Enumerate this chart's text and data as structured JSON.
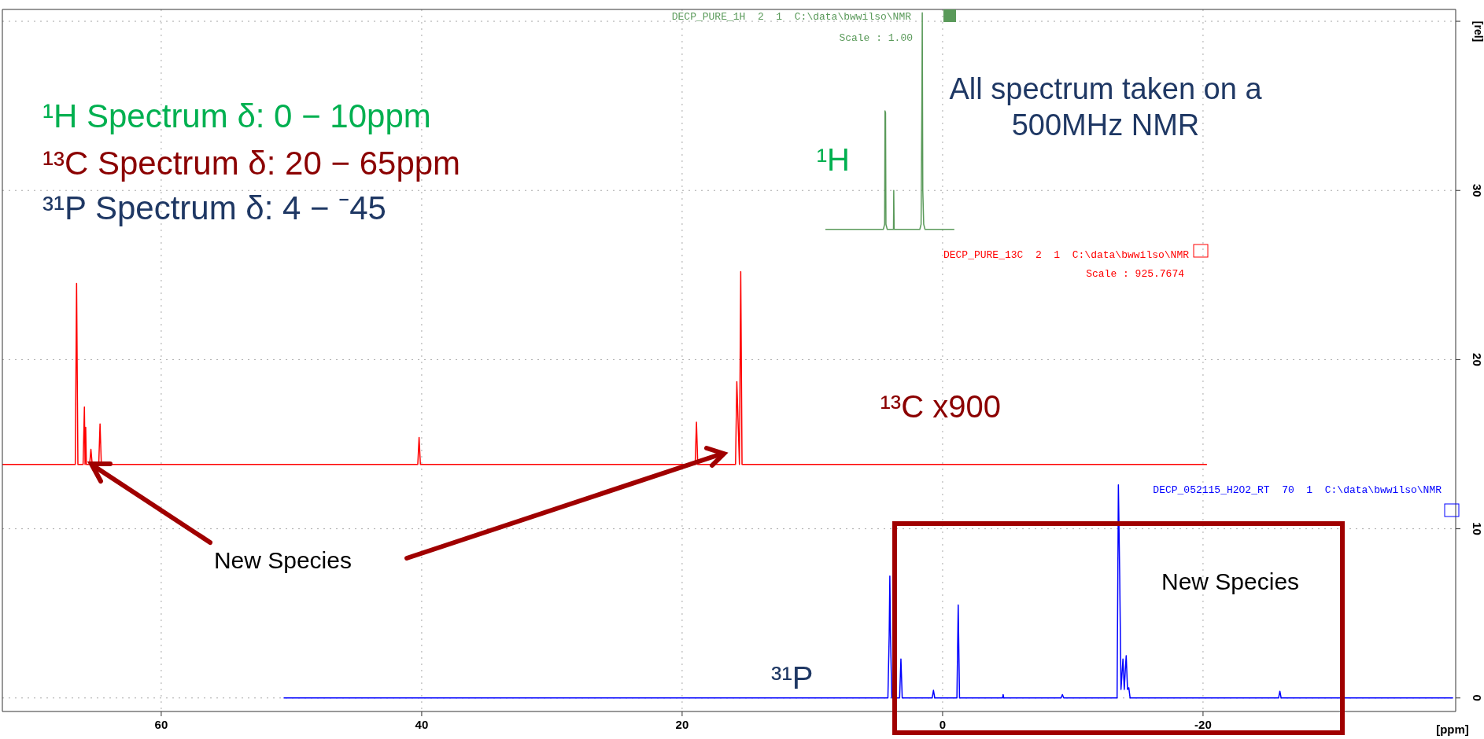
{
  "chart_data": {
    "type": "line",
    "xlabel": "[ppm]",
    "ylabel": "[rel]",
    "xlim": [
      72.2,
      -39.4
    ],
    "xticks": [
      60,
      40,
      20,
      0,
      -20
    ],
    "ylim": [
      -0.8,
      40.7
    ],
    "yticks": [
      0,
      10,
      20,
      30,
      {
        "value": 40,
        "label": null
      }
    ],
    "grid": true,
    "marker": "none",
    "line_style": "solid",
    "series": [
      {
        "name": "¹H",
        "color": "#5a9a5a",
        "x": [
          9.0,
          4.55,
          4.45,
          4.42,
          4.38,
          4.35,
          4.25,
          3.77,
          3.75,
          3.72,
          1.75,
          1.65,
          1.58,
          1.56,
          1.52,
          1.45,
          1.35,
          -0.9
        ],
        "values": [
          27.7,
          27.7,
          28.0,
          34.7,
          34.6,
          28.0,
          27.7,
          27.7,
          30.0,
          27.7,
          27.7,
          28.0,
          36.5,
          40.5,
          30.0,
          28.0,
          27.7,
          27.7
        ]
      },
      {
        "name": "¹³C x900",
        "color": "#ff0000",
        "x": [
          72.2,
          66.6,
          66.5,
          66.4,
          66.0,
          65.9,
          65.85,
          65.8,
          65.75,
          65.5,
          65.4,
          65.3,
          64.8,
          64.7,
          64.6,
          40.3,
          40.2,
          40.1,
          19.0,
          18.9,
          18.8,
          15.9,
          15.8,
          15.6,
          15.5,
          15.4,
          -20.3
        ],
        "values": [
          13.8,
          13.8,
          24.5,
          13.8,
          13.8,
          17.2,
          13.8,
          16.0,
          13.8,
          13.8,
          14.7,
          13.8,
          13.8,
          16.2,
          13.8,
          13.8,
          15.4,
          13.8,
          13.8,
          16.3,
          13.8,
          13.8,
          18.7,
          13.8,
          25.2,
          13.8,
          13.8
        ]
      },
      {
        "name": "³¹P",
        "color": "#0000ff",
        "x": [
          50.6,
          4.2,
          4.1,
          4.05,
          4.0,
          3.9,
          3.3,
          3.2,
          3.1,
          0.8,
          0.7,
          0.6,
          -1.1,
          -1.2,
          -1.3,
          -4.6,
          -4.65,
          -4.7,
          -9.1,
          -9.2,
          -9.3,
          -13.4,
          -13.5,
          -13.6,
          -13.7,
          -13.85,
          -13.95,
          -14.05,
          -14.1,
          -14.2,
          -14.3,
          -14.4,
          -14.6,
          -25.8,
          -25.9,
          -26.0,
          -39.2
        ],
        "values": [
          0,
          0,
          3.7,
          7.2,
          3.7,
          0,
          0,
          2.3,
          0,
          0,
          0.45,
          0,
          0,
          5.5,
          0,
          0,
          0.2,
          0,
          0,
          0.2,
          0,
          0,
          12.6,
          7.2,
          0.5,
          2.3,
          0.5,
          1.9,
          2.5,
          0.5,
          0.6,
          0,
          0,
          0,
          0.4,
          0,
          0
        ]
      }
    ],
    "annotations": [
      "DECP_PURE_1H  2  1  C:\\data\\bwwilso\\NMR",
      "Scale : 1.00",
      "DECP_PURE_13C  2  1  C:\\data\\bwwilso\\NMR",
      "Scale : 925.7674",
      "DECP_052115_H2O2_RT  70  1  C:\\data\\bwwilso\\NMR",
      "¹H Spectrum δ: 0 − 10ppm",
      "¹³C Spectrum δ: 20 − 65ppm",
      "³¹P Spectrum δ: 4 − ⁻45",
      "All spectrum taken on a 500MHz NMR",
      {
        "text": "New Species",
        "x": 65.5,
        "y": 13.8
      },
      "New Species"
    ]
  }
}
